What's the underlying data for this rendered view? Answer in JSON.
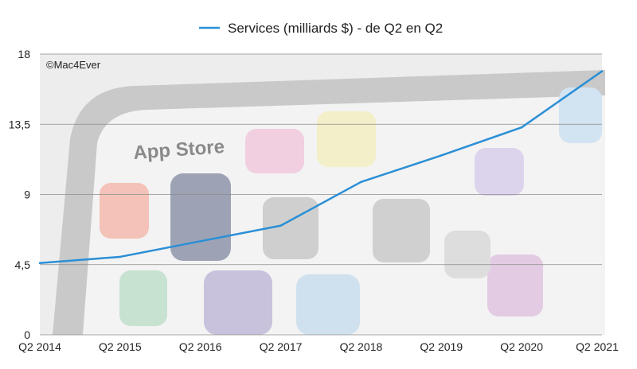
{
  "chart_data": {
    "type": "line",
    "title": "",
    "xlabel": "",
    "ylabel": "",
    "categories": [
      "Q2 2014",
      "Q2 2015",
      "Q2 2016",
      "Q2 2017",
      "Q2 2018",
      "Q2 2019",
      "Q2 2020",
      "Q2 2021"
    ],
    "series": [
      {
        "name": "Services (milliards $) - de Q2 en Q2",
        "color": "#2b8fd6",
        "values": [
          4.6,
          5.0,
          6.0,
          7.0,
          9.8,
          11.5,
          13.3,
          16.9
        ]
      }
    ],
    "ylim": [
      0,
      18
    ],
    "yticks": [
      0,
      4.5,
      9,
      13.5,
      18
    ],
    "ytick_labels": [
      "0",
      "4,5",
      "9",
      "13,5",
      "18"
    ],
    "grid": true,
    "legend_position": "top-center",
    "credit": "©Mac4Ever"
  }
}
